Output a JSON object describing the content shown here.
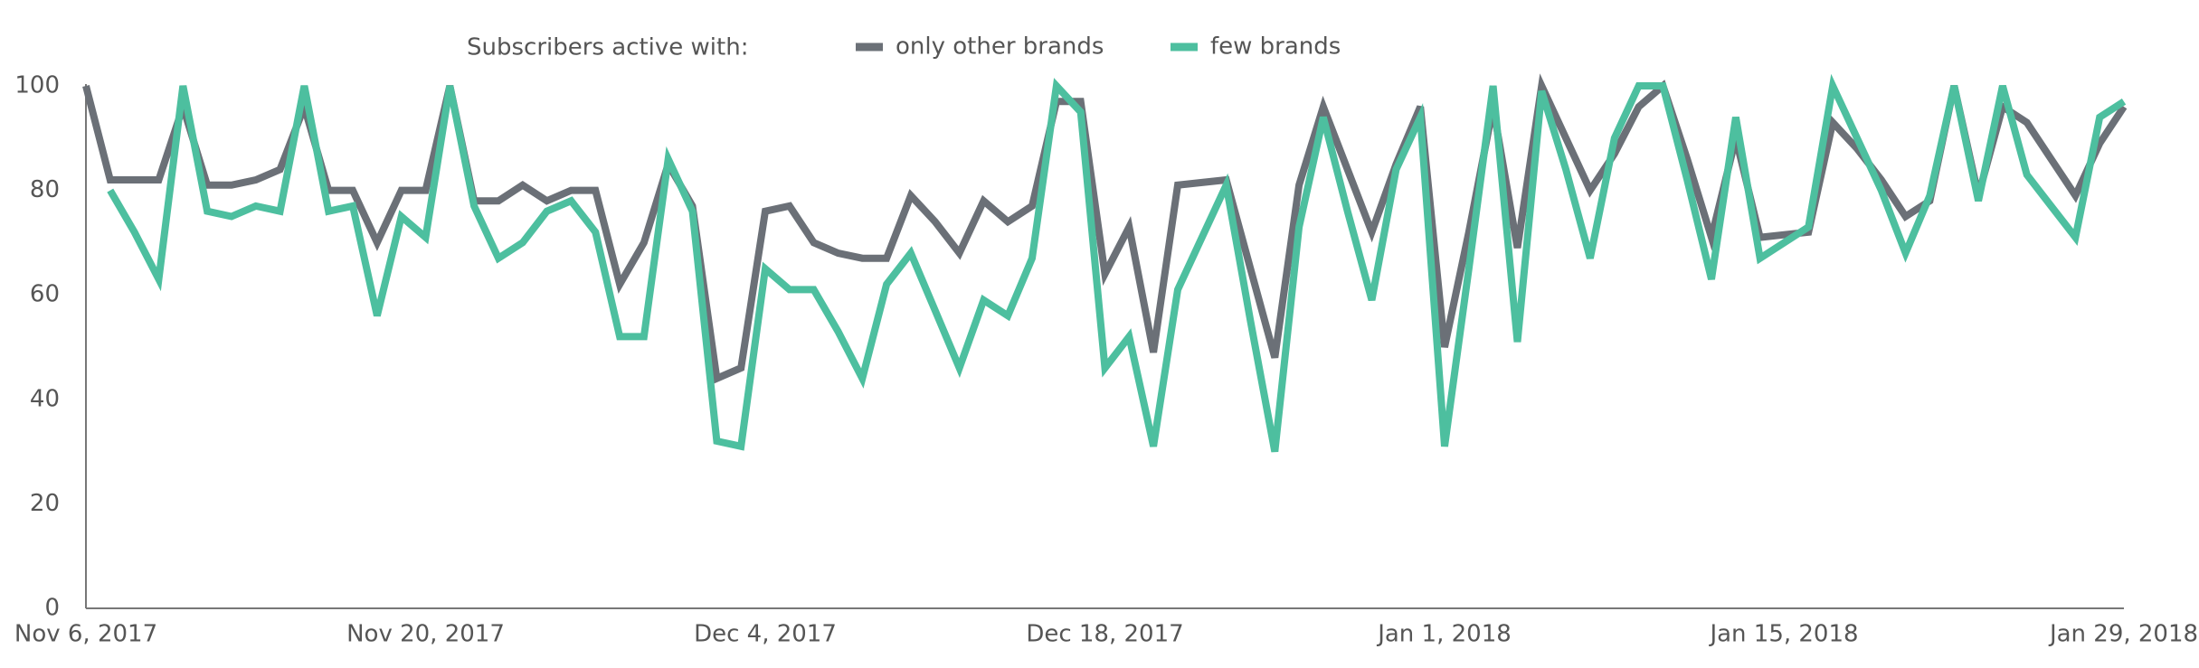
{
  "chart_data": {
    "type": "line",
    "legend_title": "Subscribers active with:",
    "categories": [
      "Nov 6, 2017",
      null,
      null,
      null,
      null,
      null,
      null,
      null,
      null,
      null,
      null,
      null,
      null,
      null,
      "Nov 20, 2017",
      null,
      null,
      null,
      null,
      null,
      null,
      null,
      null,
      null,
      null,
      null,
      null,
      null,
      "Dec 4, 2017",
      null,
      null,
      null,
      null,
      null,
      null,
      null,
      null,
      null,
      null,
      null,
      null,
      null,
      "Dec 18, 2017",
      null,
      null,
      null,
      null,
      null,
      null,
      null,
      null,
      null,
      null,
      null,
      null,
      null,
      "Jan 1, 2018",
      null,
      null,
      null,
      null,
      null,
      null,
      null,
      null,
      null,
      null,
      null,
      null,
      null,
      "Jan 15, 2018",
      null,
      null,
      null,
      null,
      null,
      null,
      null,
      null,
      null,
      null,
      null,
      null,
      null,
      "Jan 29, 2018"
    ],
    "series": [
      {
        "name": "only other brands",
        "color": "#6b7077",
        "values": [
          100,
          82,
          82,
          82,
          96,
          81,
          81,
          82,
          84,
          96,
          80,
          80,
          70,
          80,
          80,
          100,
          78,
          78,
          81,
          78,
          80,
          80,
          62,
          70,
          85,
          77,
          44,
          46,
          76,
          77,
          70,
          68,
          67,
          67,
          79,
          74,
          68,
          78,
          74,
          77,
          97,
          97,
          64,
          73,
          49,
          81,
          81.5,
          82,
          65,
          48,
          81,
          96,
          84,
          72,
          85,
          96,
          50,
          72,
          96,
          69,
          100,
          90,
          80,
          87,
          96,
          100,
          86,
          71,
          90,
          71,
          71.5,
          72,
          93,
          88,
          82,
          75,
          78,
          100,
          79,
          96,
          93,
          86,
          79,
          89,
          96
        ]
      },
      {
        "name": "few brands",
        "color": "#4dbf9f",
        "values": [
          null,
          80,
          72,
          63,
          100,
          76,
          75,
          77,
          76,
          100,
          76,
          77,
          56,
          75,
          71,
          100,
          77,
          67,
          70,
          76,
          78,
          72,
          52,
          52,
          86,
          76,
          32,
          31,
          65,
          61,
          61,
          53,
          44,
          62,
          68,
          57,
          46,
          59,
          56,
          67,
          100,
          95,
          46,
          52,
          31,
          61,
          71,
          81,
          55,
          30,
          73,
          94,
          76,
          59,
          84,
          94,
          31,
          65,
          100,
          51,
          99,
          84,
          67,
          90,
          100,
          100,
          82,
          63,
          94,
          67,
          70,
          73,
          100,
          90,
          80,
          68,
          79,
          100,
          78,
          100,
          83,
          77,
          71,
          94,
          97
        ]
      }
    ],
    "ylim": [
      0,
      100
    ],
    "yticks": [
      0,
      20,
      40,
      60,
      80,
      100
    ],
    "grid": false,
    "legend": "top"
  }
}
